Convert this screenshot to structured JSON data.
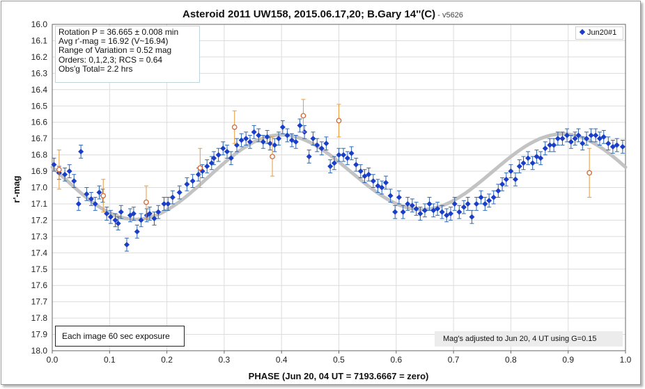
{
  "chart_data": {
    "type": "scatter",
    "title": "Asteroid 2011 UW158, 2015.06.17,20; B.Gary 14''(C)",
    "version": " - v5626",
    "xlabel": "PHASE (Jun 20, 04 UT = 7193.6667 = zero)",
    "ylabel": "r'-mag",
    "xlim": [
      0.0,
      1.0
    ],
    "ylim": [
      16.0,
      18.0
    ],
    "y_inverted": true,
    "x_ticks": [
      "0.0",
      "0.1",
      "0.2",
      "0.3",
      "0.4",
      "0.5",
      "0.6",
      "0.7",
      "0.8",
      "0.9",
      "1.0"
    ],
    "y_ticks": [
      "16.0",
      "16.1",
      "16.2",
      "16.3",
      "16.4",
      "16.5",
      "16.6",
      "16.7",
      "16.8",
      "16.9",
      "17.0",
      "17.1",
      "17.2",
      "17.3",
      "17.4",
      "17.5",
      "17.6",
      "17.7",
      "17.8",
      "17.9",
      "18.0"
    ],
    "grid": true,
    "legend_position": "top-right",
    "series": [
      {
        "name": "Jun20#1",
        "color": "#1a3ec8",
        "marker": "diamond",
        "error": 0.04,
        "points": [
          [
            0.003,
            16.86
          ],
          [
            0.012,
            16.91
          ],
          [
            0.022,
            16.92
          ],
          [
            0.03,
            16.9
          ],
          [
            0.038,
            16.96
          ],
          [
            0.046,
            17.1
          ],
          [
            0.05,
            16.78
          ],
          [
            0.06,
            17.04
          ],
          [
            0.068,
            17.07
          ],
          [
            0.075,
            17.1
          ],
          [
            0.082,
            17.03
          ],
          [
            0.088,
            17.05
          ],
          [
            0.095,
            17.16
          ],
          [
            0.102,
            17.18
          ],
          [
            0.11,
            17.2
          ],
          [
            0.115,
            17.22
          ],
          [
            0.12,
            17.15
          ],
          [
            0.13,
            17.35
          ],
          [
            0.136,
            17.17
          ],
          [
            0.142,
            17.16
          ],
          [
            0.148,
            17.27
          ],
          [
            0.155,
            17.2
          ],
          [
            0.165,
            17.17
          ],
          [
            0.17,
            17.16
          ],
          [
            0.178,
            17.19
          ],
          [
            0.185,
            17.15
          ],
          [
            0.195,
            17.1
          ],
          [
            0.202,
            17.1
          ],
          [
            0.21,
            17.06
          ],
          [
            0.222,
            17.03
          ],
          [
            0.235,
            16.98
          ],
          [
            0.245,
            16.96
          ],
          [
            0.255,
            16.92
          ],
          [
            0.262,
            16.9
          ],
          [
            0.27,
            16.87
          ],
          [
            0.278,
            16.85
          ],
          [
            0.282,
            16.82
          ],
          [
            0.29,
            16.8
          ],
          [
            0.298,
            16.76
          ],
          [
            0.305,
            16.78
          ],
          [
            0.312,
            16.82
          ],
          [
            0.322,
            16.74
          ],
          [
            0.33,
            16.71
          ],
          [
            0.338,
            16.7
          ],
          [
            0.345,
            16.72
          ],
          [
            0.352,
            16.66
          ],
          [
            0.36,
            16.68
          ],
          [
            0.368,
            16.72
          ],
          [
            0.375,
            16.69
          ],
          [
            0.38,
            16.73
          ],
          [
            0.388,
            16.74
          ],
          [
            0.395,
            16.7
          ],
          [
            0.402,
            16.63
          ],
          [
            0.41,
            16.68
          ],
          [
            0.418,
            16.71
          ],
          [
            0.425,
            16.72
          ],
          [
            0.432,
            16.62
          ],
          [
            0.44,
            16.66
          ],
          [
            0.448,
            16.81
          ],
          [
            0.455,
            16.7
          ],
          [
            0.462,
            16.74
          ],
          [
            0.47,
            16.76
          ],
          [
            0.478,
            16.73
          ],
          [
            0.485,
            16.87
          ],
          [
            0.492,
            16.85
          ],
          [
            0.5,
            16.8
          ],
          [
            0.508,
            16.8
          ],
          [
            0.515,
            16.82
          ],
          [
            0.522,
            16.79
          ],
          [
            0.53,
            16.86
          ],
          [
            0.538,
            16.9
          ],
          [
            0.545,
            16.93
          ],
          [
            0.552,
            16.92
          ],
          [
            0.56,
            16.96
          ],
          [
            0.568,
            16.99
          ],
          [
            0.575,
            17.0
          ],
          [
            0.582,
            16.97
          ],
          [
            0.59,
            17.05
          ],
          [
            0.598,
            17.15
          ],
          [
            0.605,
            17.06
          ],
          [
            0.612,
            17.15
          ],
          [
            0.62,
            17.1
          ],
          [
            0.628,
            17.11
          ],
          [
            0.635,
            17.13
          ],
          [
            0.642,
            17.16
          ],
          [
            0.65,
            17.14
          ],
          [
            0.658,
            17.1
          ],
          [
            0.665,
            17.14
          ],
          [
            0.672,
            17.13
          ],
          [
            0.68,
            17.15
          ],
          [
            0.688,
            17.17
          ],
          [
            0.695,
            17.16
          ],
          [
            0.702,
            17.1
          ],
          [
            0.71,
            17.15
          ],
          [
            0.718,
            17.12
          ],
          [
            0.725,
            17.1
          ],
          [
            0.732,
            17.18
          ],
          [
            0.74,
            17.1
          ],
          [
            0.748,
            17.06
          ],
          [
            0.755,
            17.1
          ],
          [
            0.762,
            17.08
          ],
          [
            0.77,
            17.06
          ],
          [
            0.778,
            17.02
          ],
          [
            0.785,
            16.98
          ],
          [
            0.792,
            16.95
          ],
          [
            0.8,
            16.9
          ],
          [
            0.808,
            16.95
          ],
          [
            0.815,
            16.87
          ],
          [
            0.822,
            16.85
          ],
          [
            0.83,
            16.82
          ],
          [
            0.838,
            16.85
          ],
          [
            0.845,
            16.81
          ],
          [
            0.852,
            16.82
          ],
          [
            0.86,
            16.76
          ],
          [
            0.868,
            16.74
          ],
          [
            0.875,
            16.74
          ],
          [
            0.882,
            16.7
          ],
          [
            0.89,
            16.7
          ],
          [
            0.898,
            16.68
          ],
          [
            0.905,
            16.72
          ],
          [
            0.912,
            16.7
          ],
          [
            0.918,
            16.68
          ],
          [
            0.925,
            16.73
          ],
          [
            0.932,
            16.7
          ],
          [
            0.94,
            16.68
          ],
          [
            0.948,
            16.68
          ],
          [
            0.955,
            16.7
          ],
          [
            0.962,
            16.69
          ],
          [
            0.97,
            16.73
          ],
          [
            0.978,
            16.75
          ],
          [
            0.985,
            16.74
          ],
          [
            0.995,
            16.75
          ]
        ]
      },
      {
        "name": "",
        "color": "#d9642e",
        "marker": "open-circle",
        "points": [
          [
            0.012,
            16.89,
            0.12
          ],
          [
            0.089,
            17.05,
            0.1
          ],
          [
            0.164,
            17.09,
            0.1
          ],
          [
            0.258,
            16.88,
            0.12
          ],
          [
            0.318,
            16.63,
            0.1
          ],
          [
            0.384,
            16.81,
            0.12
          ],
          [
            0.438,
            16.56,
            0.1
          ],
          [
            0.5,
            16.59,
            0.1
          ],
          [
            0.937,
            16.91,
            0.15
          ]
        ]
      }
    ],
    "fit_curve": {
      "color": "#c0c0c0",
      "mean": 16.92,
      "terms": [
        [
          0.245,
          1.0
        ],
        [
          0.03,
          1.95
        ]
      ]
    }
  },
  "info_box": {
    "lines": [
      "Rotation P = 36.665 ± 0.008 min",
      "Avg r'-mag = 16.92 (V~16.94)",
      "Range of Variation = 0.52 mag",
      "Orders: 0,1,2,3; RCS = 0.64",
      "Obs'g Total= 2.2 hrs"
    ]
  },
  "legend": {
    "label": "Jun20#1"
  },
  "notes": {
    "exposure": "Each image 60 sec exposure",
    "adjusted": "Mag's adjusted to Jun 20, 4 UT using G=0.15"
  }
}
